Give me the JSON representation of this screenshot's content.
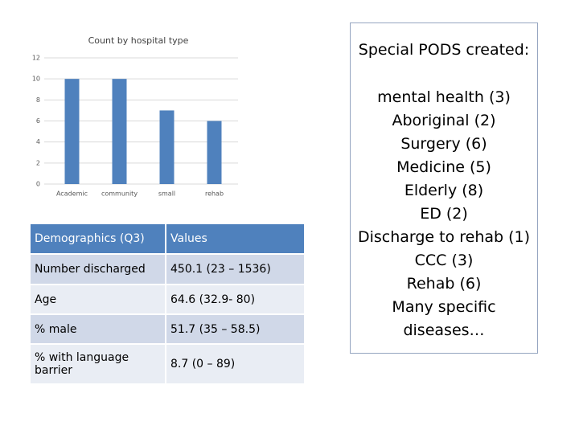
{
  "chart_data": {
    "type": "bar",
    "title": "Count by hospital type",
    "categories": [
      "Academic",
      "community",
      "small",
      "rehab"
    ],
    "values": [
      10,
      10,
      7,
      6
    ],
    "color": "#4f81bd",
    "ylim": [
      0,
      12
    ],
    "yticks": [
      0,
      2,
      4,
      6,
      8,
      10,
      12
    ],
    "grid": true
  },
  "table": {
    "header": [
      "Demographics (Q3)",
      "Values"
    ],
    "rows": [
      [
        "Number discharged",
        "450.1 (23 – 1536)"
      ],
      [
        "Age",
        "64.6 (32.9- 80)"
      ],
      [
        "% male",
        "51.7 (35 – 58.5)"
      ],
      [
        "% with language barrier",
        "8.7 (0 – 89)"
      ]
    ]
  },
  "textbox": {
    "title": "Special PODS created:",
    "items": [
      "mental health (3)",
      "Aboriginal (2)",
      "Surgery (6)",
      "Medicine (5)",
      "Elderly (8)",
      "ED (2)",
      "Discharge to rehab (1)",
      "CCC (3)",
      "Rehab (6)",
      "Many specific diseases…"
    ]
  }
}
